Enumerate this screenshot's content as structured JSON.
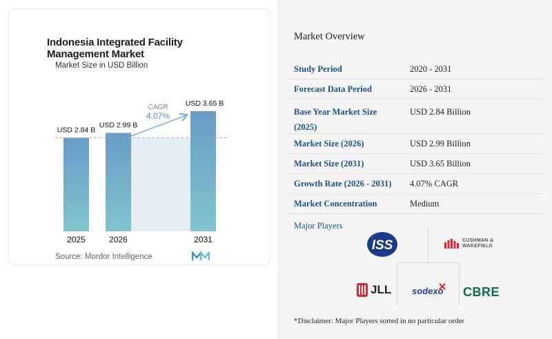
{
  "chart_data": {
    "type": "bar",
    "title": "Indonesia Integrated Facility Management Market",
    "subtitle": "Market Size in USD Billion",
    "categories": [
      "2025",
      "2026",
      "2031"
    ],
    "values": [
      2.84,
      2.99,
      3.65
    ],
    "data_labels": [
      "USD 2.84 B",
      "USD 2.99 B",
      "USD 3.65 B"
    ],
    "ylim": [
      0,
      3.65
    ],
    "grid": false,
    "annotation": {
      "label": "CAGR",
      "value": "4.07%"
    },
    "colors": {
      "bar_top": "#6a9bc5",
      "bar_bottom": "#7fc4cf",
      "band": "#e3edf6",
      "arrow": "#7aaed6",
      "dashed": "#aaaaaa"
    }
  },
  "source": "Source: Mordor Intelligence",
  "overview": {
    "title": "Market Overview",
    "rows": [
      {
        "key": "Study Period",
        "value": "2020 - 2031"
      },
      {
        "key": "Forecast Data Period",
        "value": "2026 - 2031"
      },
      {
        "key": "Base Year Market Size (2025)",
        "value": "USD 2.84 Billion"
      },
      {
        "key": "Market Size (2026)",
        "value": "USD 2.99 Billion"
      },
      {
        "key": "Market Size (2031)",
        "value": "USD 3.65 Billion"
      },
      {
        "key": "Growth Rate (2026 - 2031)",
        "value": "4.07% CAGR"
      },
      {
        "key": "Market Concentration",
        "value": "Medium"
      }
    ]
  },
  "players": {
    "title": "Major Players",
    "logos": [
      "ISS",
      "CUSHMAN & WAKEFIELD",
      "JLL",
      "sodexo",
      "CBRE"
    ]
  },
  "disclaimer": "*Disclaimer: Major Players sorted in no particular order"
}
